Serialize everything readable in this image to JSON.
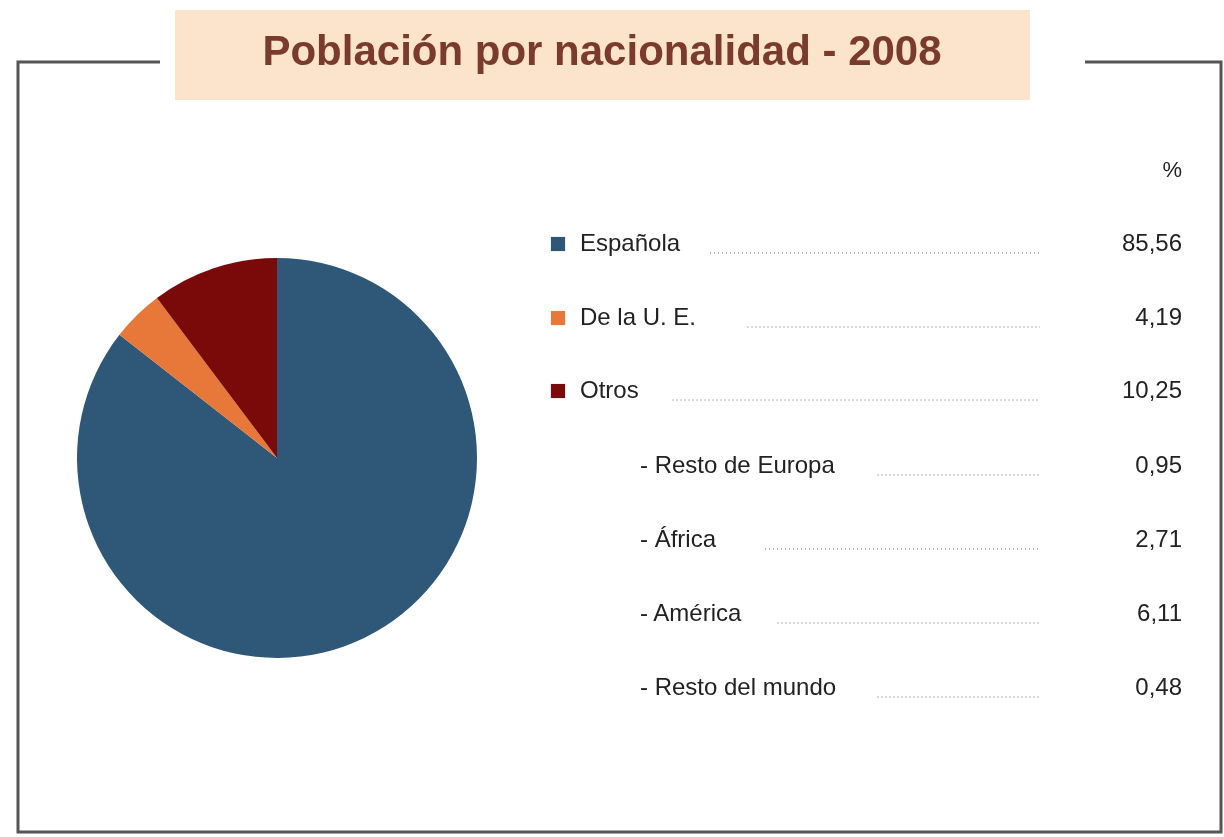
{
  "chart_data": {
    "type": "pie",
    "title": "Población por nacionalidad - 2008",
    "legend_title": "%",
    "categories": [
      "Española",
      "De la U. E.",
      "Otros"
    ],
    "values": [
      85.56,
      4.19,
      10.25
    ],
    "colors": [
      "#2f5878",
      "#e8773a",
      "#7a0a0a"
    ],
    "value_labels": [
      "85,56",
      "4,19",
      "10,25"
    ],
    "legend": "right",
    "annotations": [
      "- Resto de Europa",
      "0,95",
      "- África",
      "2,71",
      "- América",
      "6,11",
      "- Resto del mundo",
      "0,48"
    ]
  }
}
